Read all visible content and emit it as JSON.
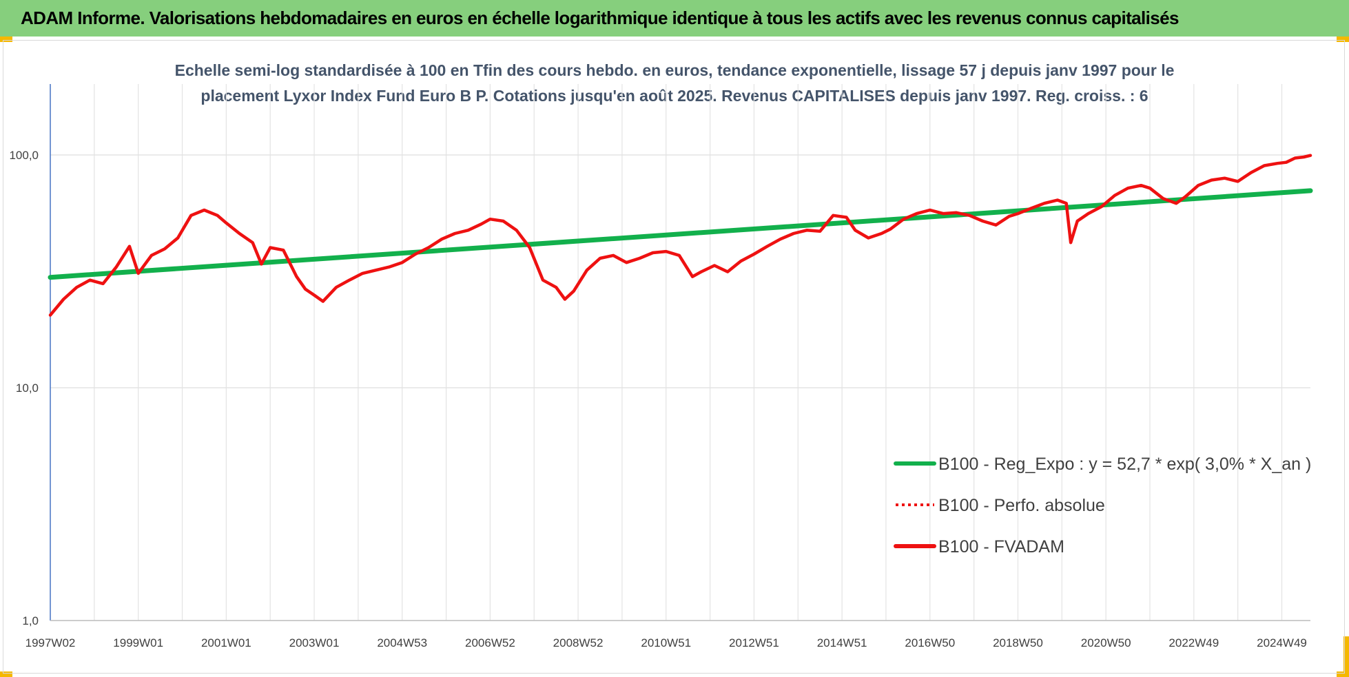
{
  "header": {
    "title": "ADAM Informe. Valorisations hebdomadaires en euros en échelle logarithmique identique à tous les actifs avec les revenus connus capitalisés"
  },
  "colors": {
    "banner": "#86cf7d",
    "corner": "#f5b800",
    "red_series": "#ee1111",
    "green_series": "#12b04c",
    "axis": "#4472c4",
    "grid": "#e3e3e3"
  },
  "chart_data": {
    "type": "line",
    "subtitle_lines": [
      "Echelle semi-log standardisée à 100 en Tfin des cours hebdo. en euros, tendance exponentielle, lissage 57 j depuis janv 1997 pour le",
      "placement Lyxor  Index Fund Euro B P. Cotations jusqu'en août 2025. Revenus CAPITALISES depuis janv 1997. Reg. croiss. : 6"
    ],
    "y_scale": "log",
    "ylim": [
      1,
      100
    ],
    "y_ticks": [
      {
        "value": 100,
        "label": "100,0"
      },
      {
        "value": 10,
        "label": "10,0"
      },
      {
        "value": 1,
        "label": "1,0"
      }
    ],
    "xlim": [
      1997.0,
      2025.65
    ],
    "x_ticks": [
      {
        "t": 1997.0,
        "label": "1997W02"
      },
      {
        "t": 1999.0,
        "label": "1999W01"
      },
      {
        "t": 2001.0,
        "label": "2001W01"
      },
      {
        "t": 2003.0,
        "label": "2003W01"
      },
      {
        "t": 2005.0,
        "label": "2004W53"
      },
      {
        "t": 2007.0,
        "label": "2006W52"
      },
      {
        "t": 2009.0,
        "label": "2008W52"
      },
      {
        "t": 2011.0,
        "label": "2010W51"
      },
      {
        "t": 2013.0,
        "label": "2012W51"
      },
      {
        "t": 2015.0,
        "label": "2014W51"
      },
      {
        "t": 2017.0,
        "label": "2016W50"
      },
      {
        "t": 2019.0,
        "label": "2018W50"
      },
      {
        "t": 2021.0,
        "label": "2020W50"
      },
      {
        "t": 2023.0,
        "label": "2022W49"
      },
      {
        "t": 2025.0,
        "label": "2024W49"
      }
    ],
    "series": [
      {
        "name": "B100 - Reg_Expo : y = 52,7 * exp( 3,0% *  X_an )",
        "style": "solid",
        "color": "#12b04c",
        "x": [
          1997.0,
          2025.65
        ],
        "y": [
          29.8,
          70.2
        ]
      },
      {
        "name": "B100 - Perfo. absolue",
        "style": "dotted",
        "color": "#ee1111",
        "x": [],
        "y": []
      },
      {
        "name": "B100 - FVADAM",
        "style": "solid",
        "color": "#ee1111",
        "x": [
          1997.0,
          1997.3,
          1997.6,
          1997.9,
          1998.2,
          1998.5,
          1998.8,
          1999.0,
          1999.3,
          1999.6,
          1999.9,
          2000.2,
          2000.5,
          2000.8,
          2001.0,
          2001.3,
          2001.6,
          2001.8,
          2002.0,
          2002.3,
          2002.6,
          2002.8,
          2003.0,
          2003.2,
          2003.5,
          2003.8,
          2004.1,
          2004.4,
          2004.7,
          2005.0,
          2005.3,
          2005.6,
          2005.9,
          2006.2,
          2006.5,
          2006.8,
          2007.0,
          2007.3,
          2007.6,
          2007.9,
          2008.2,
          2008.5,
          2008.7,
          2008.9,
          2009.2,
          2009.5,
          2009.8,
          2010.1,
          2010.4,
          2010.7,
          2011.0,
          2011.3,
          2011.6,
          2011.8,
          2012.1,
          2012.4,
          2012.7,
          2013.0,
          2013.3,
          2013.6,
          2013.9,
          2014.2,
          2014.5,
          2014.8,
          2015.1,
          2015.3,
          2015.6,
          2015.9,
          2016.1,
          2016.4,
          2016.7,
          2017.0,
          2017.3,
          2017.6,
          2017.9,
          2018.2,
          2018.5,
          2018.8,
          2019.0,
          2019.3,
          2019.6,
          2019.9,
          2020.1,
          2020.2,
          2020.35,
          2020.6,
          2020.9,
          2021.2,
          2021.5,
          2021.8,
          2022.0,
          2022.3,
          2022.6,
          2022.8,
          2023.1,
          2023.4,
          2023.7,
          2024.0,
          2024.3,
          2024.6,
          2024.9,
          2025.1,
          2025.3,
          2025.5,
          2025.65
        ],
        "y": [
          20.5,
          24.0,
          27.0,
          29.0,
          28.0,
          33.0,
          40.5,
          31.0,
          37.0,
          39.5,
          44.0,
          55.0,
          58.0,
          55.0,
          51.0,
          46.0,
          42.0,
          34.0,
          40.0,
          39.0,
          30.0,
          26.5,
          25.0,
          23.5,
          27.0,
          29.0,
          31.0,
          32.0,
          33.0,
          34.5,
          37.5,
          40.0,
          43.5,
          46.0,
          47.5,
          50.5,
          53.0,
          52.0,
          47.5,
          40.0,
          29.0,
          27.0,
          24.0,
          26.0,
          32.0,
          36.0,
          37.0,
          34.5,
          36.0,
          38.0,
          38.5,
          37.0,
          30.0,
          31.5,
          33.5,
          31.5,
          35.0,
          37.5,
          40.5,
          43.5,
          46.0,
          47.5,
          47.0,
          55.0,
          54.0,
          47.5,
          44.0,
          46.0,
          48.0,
          53.0,
          56.0,
          58.0,
          56.0,
          56.5,
          55.0,
          52.0,
          50.0,
          54.5,
          56.0,
          59.0,
          62.0,
          64.0,
          62.0,
          42.0,
          52.0,
          56.0,
          60.0,
          67.0,
          72.0,
          74.0,
          72.0,
          65.0,
          62.0,
          66.0,
          74.0,
          78.0,
          79.5,
          77.0,
          84.0,
          90.0,
          92.0,
          93.0,
          97.0,
          98.0,
          99.5
        ]
      }
    ],
    "legend_position": "lower-right",
    "grid": true
  }
}
